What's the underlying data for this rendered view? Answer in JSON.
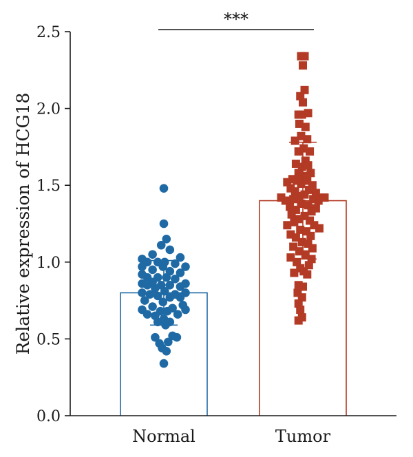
{
  "chart_data": {
    "type": "scatter",
    "ylabel": "Relative expression of HCG18",
    "ylim": [
      0,
      2.5
    ],
    "yticks": [
      "0.0",
      "0.5",
      "1.0",
      "1.5",
      "2.0",
      "2.5"
    ],
    "categories": [
      "Normal",
      "Tumor"
    ],
    "significance": "***",
    "series": [
      {
        "name": "Normal",
        "color": "#1f6aa5",
        "marker": "circle",
        "mean": 0.8,
        "sd": 0.21,
        "points": [
          {
            "pos": 0.0,
            "y": 1.48
          },
          {
            "pos": 0.0,
            "y": 1.25
          },
          {
            "pos": 0.06,
            "y": 1.15
          },
          {
            "pos": -0.06,
            "y": 1.11
          },
          {
            "pos": 0.14,
            "y": 1.08
          },
          {
            "pos": -0.26,
            "y": 1.05
          },
          {
            "pos": 0.38,
            "y": 1.03
          },
          {
            "pos": -0.5,
            "y": 1.02
          },
          {
            "pos": -0.38,
            "y": 1.0
          },
          {
            "pos": -0.14,
            "y": 1.0
          },
          {
            "pos": 0.02,
            "y": 1.0
          },
          {
            "pos": 0.26,
            "y": 0.99
          },
          {
            "pos": -0.5,
            "y": 0.97
          },
          {
            "pos": -0.02,
            "y": 0.97
          },
          {
            "pos": 0.5,
            "y": 0.97
          },
          {
            "pos": -0.26,
            "y": 0.95
          },
          {
            "pos": 0.14,
            "y": 0.94
          },
          {
            "pos": 0.38,
            "y": 0.93
          },
          {
            "pos": -0.5,
            "y": 0.92
          },
          {
            "pos": -0.38,
            "y": 0.9
          },
          {
            "pos": -0.14,
            "y": 0.9
          },
          {
            "pos": 0.06,
            "y": 0.9
          },
          {
            "pos": 0.26,
            "y": 0.89
          },
          {
            "pos": -0.26,
            "y": 0.87
          },
          {
            "pos": 0.5,
            "y": 0.86
          },
          {
            "pos": -0.5,
            "y": 0.86
          },
          {
            "pos": -0.38,
            "y": 0.85
          },
          {
            "pos": -0.06,
            "y": 0.85
          },
          {
            "pos": 0.14,
            "y": 0.85
          },
          {
            "pos": 0.38,
            "y": 0.84
          },
          {
            "pos": -0.2,
            "y": 0.83
          },
          {
            "pos": 0.02,
            "y": 0.81
          },
          {
            "pos": -0.5,
            "y": 0.8
          },
          {
            "pos": 0.5,
            "y": 0.8
          },
          {
            "pos": -0.32,
            "y": 0.79
          },
          {
            "pos": 0.26,
            "y": 0.79
          },
          {
            "pos": -0.14,
            "y": 0.78
          },
          {
            "pos": 0.14,
            "y": 0.77
          },
          {
            "pos": 0.38,
            "y": 0.77
          },
          {
            "pos": -0.44,
            "y": 0.75
          },
          {
            "pos": -0.02,
            "y": 0.74
          },
          {
            "pos": 0.44,
            "y": 0.72
          },
          {
            "pos": -0.26,
            "y": 0.71
          },
          {
            "pos": 0.2,
            "y": 0.7
          },
          {
            "pos": -0.5,
            "y": 0.69
          },
          {
            "pos": 0.5,
            "y": 0.69
          },
          {
            "pos": -0.08,
            "y": 0.68
          },
          {
            "pos": 0.08,
            "y": 0.68
          },
          {
            "pos": -0.38,
            "y": 0.66
          },
          {
            "pos": 0.32,
            "y": 0.66
          },
          {
            "pos": -0.2,
            "y": 0.65
          },
          {
            "pos": 0.0,
            "y": 0.63
          },
          {
            "pos": -0.14,
            "y": 0.61
          },
          {
            "pos": 0.14,
            "y": 0.61
          },
          {
            "pos": 0.04,
            "y": 0.59
          },
          {
            "pos": -0.2,
            "y": 0.51
          },
          {
            "pos": 0.2,
            "y": 0.52
          },
          {
            "pos": 0.3,
            "y": 0.51
          },
          {
            "pos": -0.1,
            "y": 0.47
          },
          {
            "pos": 0.1,
            "y": 0.48
          },
          {
            "pos": -0.04,
            "y": 0.44
          },
          {
            "pos": 0.06,
            "y": 0.42
          },
          {
            "pos": 0.0,
            "y": 0.34
          }
        ]
      },
      {
        "name": "Tumor",
        "color": "#b33a24",
        "marker": "square",
        "mean": 1.4,
        "sd": 0.38,
        "points": [
          {
            "pos": -0.04,
            "y": 2.34
          },
          {
            "pos": 0.04,
            "y": 2.34
          },
          {
            "pos": 0.0,
            "y": 2.28
          },
          {
            "pos": 0.04,
            "y": 2.12
          },
          {
            "pos": -0.06,
            "y": 2.08
          },
          {
            "pos": 0.0,
            "y": 2.04
          },
          {
            "pos": -0.1,
            "y": 1.96
          },
          {
            "pos": -0.02,
            "y": 1.96
          },
          {
            "pos": 0.12,
            "y": 1.97
          },
          {
            "pos": -0.08,
            "y": 1.9
          },
          {
            "pos": 0.06,
            "y": 1.88
          },
          {
            "pos": -0.04,
            "y": 1.82
          },
          {
            "pos": -0.18,
            "y": 1.79
          },
          {
            "pos": 0.1,
            "y": 1.8
          },
          {
            "pos": 0.02,
            "y": 1.74
          },
          {
            "pos": -0.1,
            "y": 1.72
          },
          {
            "pos": 0.16,
            "y": 1.72
          },
          {
            "pos": 0.06,
            "y": 1.66
          },
          {
            "pos": -0.16,
            "y": 1.64
          },
          {
            "pos": 0.12,
            "y": 1.63
          },
          {
            "pos": -0.02,
            "y": 1.62
          },
          {
            "pos": -0.1,
            "y": 1.58
          },
          {
            "pos": 0.18,
            "y": 1.58
          },
          {
            "pos": 0.04,
            "y": 1.56
          },
          {
            "pos": -0.24,
            "y": 1.54
          },
          {
            "pos": -0.14,
            "y": 1.53
          },
          {
            "pos": 0.1,
            "y": 1.53
          },
          {
            "pos": -0.36,
            "y": 1.52
          },
          {
            "pos": -0.04,
            "y": 1.51
          },
          {
            "pos": 0.22,
            "y": 1.5
          },
          {
            "pos": -0.28,
            "y": 1.48
          },
          {
            "pos": 0.14,
            "y": 1.47
          },
          {
            "pos": -0.18,
            "y": 1.46
          },
          {
            "pos": 0.3,
            "y": 1.45
          },
          {
            "pos": 0.04,
            "y": 1.44
          },
          {
            "pos": -0.1,
            "y": 1.43
          },
          {
            "pos": -0.5,
            "y": 1.42
          },
          {
            "pos": 0.44,
            "y": 1.42
          },
          {
            "pos": 0.5,
            "y": 1.42
          },
          {
            "pos": -0.22,
            "y": 1.41
          },
          {
            "pos": 0.24,
            "y": 1.41
          },
          {
            "pos": -0.4,
            "y": 1.4
          },
          {
            "pos": 0.36,
            "y": 1.4
          },
          {
            "pos": -0.04,
            "y": 1.38
          },
          {
            "pos": 0.12,
            "y": 1.37
          },
          {
            "pos": -0.3,
            "y": 1.36
          },
          {
            "pos": 0.3,
            "y": 1.35
          },
          {
            "pos": -0.16,
            "y": 1.34
          },
          {
            "pos": 0.2,
            "y": 1.33
          },
          {
            "pos": -0.26,
            "y": 1.31
          },
          {
            "pos": 0.04,
            "y": 1.3
          },
          {
            "pos": -0.1,
            "y": 1.28
          },
          {
            "pos": 0.16,
            "y": 1.27
          },
          {
            "pos": -0.2,
            "y": 1.26
          },
          {
            "pos": -0.36,
            "y": 1.24
          },
          {
            "pos": 0.26,
            "y": 1.24
          },
          {
            "pos": 0.38,
            "y": 1.22
          },
          {
            "pos": -0.06,
            "y": 1.21
          },
          {
            "pos": 0.08,
            "y": 1.2
          },
          {
            "pos": -0.28,
            "y": 1.18
          },
          {
            "pos": 0.18,
            "y": 1.17
          },
          {
            "pos": -0.16,
            "y": 1.16
          },
          {
            "pos": -0.02,
            "y": 1.13
          },
          {
            "pos": 0.12,
            "y": 1.12
          },
          {
            "pos": -0.22,
            "y": 1.1
          },
          {
            "pos": 0.22,
            "y": 1.09
          },
          {
            "pos": -0.08,
            "y": 1.07
          },
          {
            "pos": 0.06,
            "y": 1.05
          },
          {
            "pos": -0.28,
            "y": 1.03
          },
          {
            "pos": 0.2,
            "y": 1.02
          },
          {
            "pos": -0.14,
            "y": 1.0
          },
          {
            "pos": 0.14,
            "y": 0.98
          },
          {
            "pos": -0.06,
            "y": 0.96
          },
          {
            "pos": 0.02,
            "y": 0.94
          },
          {
            "pos": -0.2,
            "y": 0.93
          },
          {
            "pos": 0.1,
            "y": 0.92
          },
          {
            "pos": -0.1,
            "y": 0.85
          },
          {
            "pos": 0.0,
            "y": 0.84
          },
          {
            "pos": -0.12,
            "y": 0.8
          },
          {
            "pos": -0.02,
            "y": 0.77
          },
          {
            "pos": -0.1,
            "y": 0.73
          },
          {
            "pos": -0.06,
            "y": 0.69
          },
          {
            "pos": -0.1,
            "y": 0.62
          },
          {
            "pos": -0.02,
            "y": 0.64
          }
        ]
      }
    ]
  }
}
